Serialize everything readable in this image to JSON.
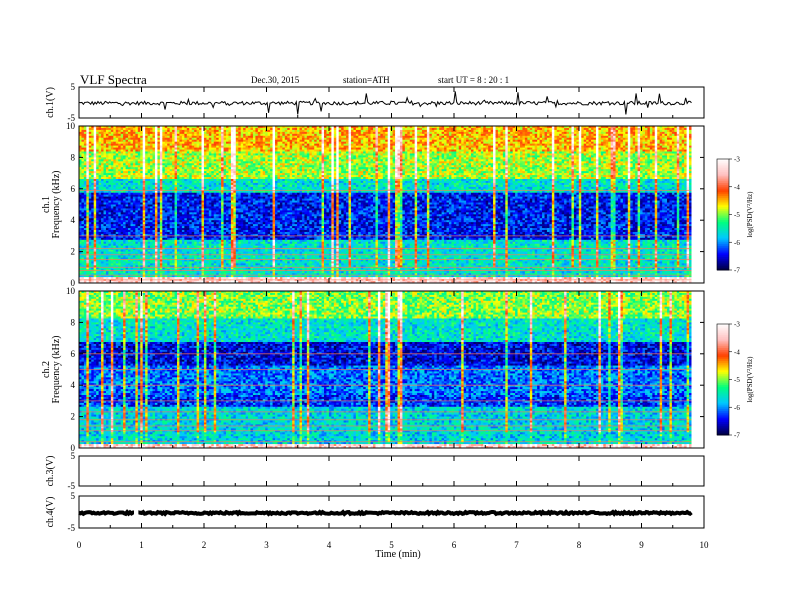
{
  "header": {
    "title": "VLF  Spectra",
    "date": "Dec.30, 2015",
    "station": "station=ATH",
    "start": "start  UT  =   8  : 20 : 1"
  },
  "chart_data": {
    "type": "heatmap",
    "x": {
      "label": "Time  (min)",
      "range": [
        0,
        10
      ],
      "ticks": [
        "0",
        "1",
        "2",
        "3",
        "4",
        "5",
        "6",
        "7",
        "8",
        "9",
        "10"
      ],
      "data_extent_min": 9.8
    },
    "colorscale": {
      "label": "log(PSD(V²/Hz)",
      "range": [
        -7,
        -3
      ],
      "ticks": [
        "-7",
        "-6",
        "-5",
        "-4",
        "-3"
      ],
      "colors": [
        "#000040",
        "#0000ff",
        "#00c8ff",
        "#00ff80",
        "#ffff00",
        "#ff4000",
        "#ffc0c0",
        "#ffffff"
      ]
    },
    "panels": [
      {
        "key": "ch1",
        "type": "line",
        "ylabel": "ch.1(V)",
        "ylim": [
          -5,
          5
        ],
        "yticks": [
          "5",
          "-5"
        ],
        "mean": -0.2,
        "noise_amplitude": 0.6,
        "spike_amplitude": 3.5
      },
      {
        "key": "spec1",
        "type": "heatmap",
        "ylabel": "ch.1\nFrequency  (kHz)",
        "ylim": [
          0,
          10
        ],
        "yticks": [
          "0",
          "2",
          "4",
          "6",
          "8",
          "10"
        ],
        "bands_khz": [
          {
            "from": 0,
            "to": 0.4,
            "level": -3.4
          },
          {
            "from": 0.4,
            "to": 2.8,
            "level": -5.6
          },
          {
            "from": 2.8,
            "to": 5.8,
            "level": -6.4
          },
          {
            "from": 5.8,
            "to": 6.6,
            "level": -5.6
          },
          {
            "from": 6.6,
            "to": 8.4,
            "level": -4.9
          },
          {
            "from": 8.4,
            "to": 10,
            "level": -4.5
          }
        ],
        "lines_khz": [
          0.2,
          0.5,
          0.8,
          1.0,
          1.5,
          1.8,
          2.2,
          3.0,
          5.9
        ]
      },
      {
        "key": "spec2",
        "type": "heatmap",
        "ylabel": "ch.2\nFrequency  (kHz)",
        "ylim": [
          0,
          10
        ],
        "yticks": [
          "0",
          "2",
          "4",
          "6",
          "8",
          "10"
        ],
        "bands_khz": [
          {
            "from": 0,
            "to": 0.3,
            "level": -3.4
          },
          {
            "from": 0.3,
            "to": 2.6,
            "level": -5.7
          },
          {
            "from": 2.6,
            "to": 3.4,
            "level": -6.3
          },
          {
            "from": 3.4,
            "to": 5.2,
            "level": -6.1
          },
          {
            "from": 5.2,
            "to": 6.8,
            "level": -6.5
          },
          {
            "from": 6.8,
            "to": 8.2,
            "level": -5.6
          },
          {
            "from": 8.2,
            "to": 10,
            "level": -5.0
          }
        ],
        "lines_khz": [
          0.4,
          1.1,
          1.4,
          1.8,
          2.3,
          3.0,
          4.0,
          5.0,
          6.0
        ]
      },
      {
        "key": "ch3",
        "type": "line",
        "ylabel": "ch.3(V)",
        "ylim": [
          -5,
          5
        ],
        "yticks": [
          "5",
          "-5"
        ],
        "mean": -5,
        "noise_amplitude": 0,
        "spike_amplitude": 0
      },
      {
        "key": "ch4",
        "type": "line",
        "ylabel": "ch.4(V)",
        "ylim": [
          -5,
          5
        ],
        "yticks": [
          "5",
          "-5"
        ],
        "mean": -0.3,
        "noise_amplitude": 0.3,
        "spike_amplitude": 0,
        "gap_min": [
          0.88,
          0.95
        ]
      }
    ]
  }
}
